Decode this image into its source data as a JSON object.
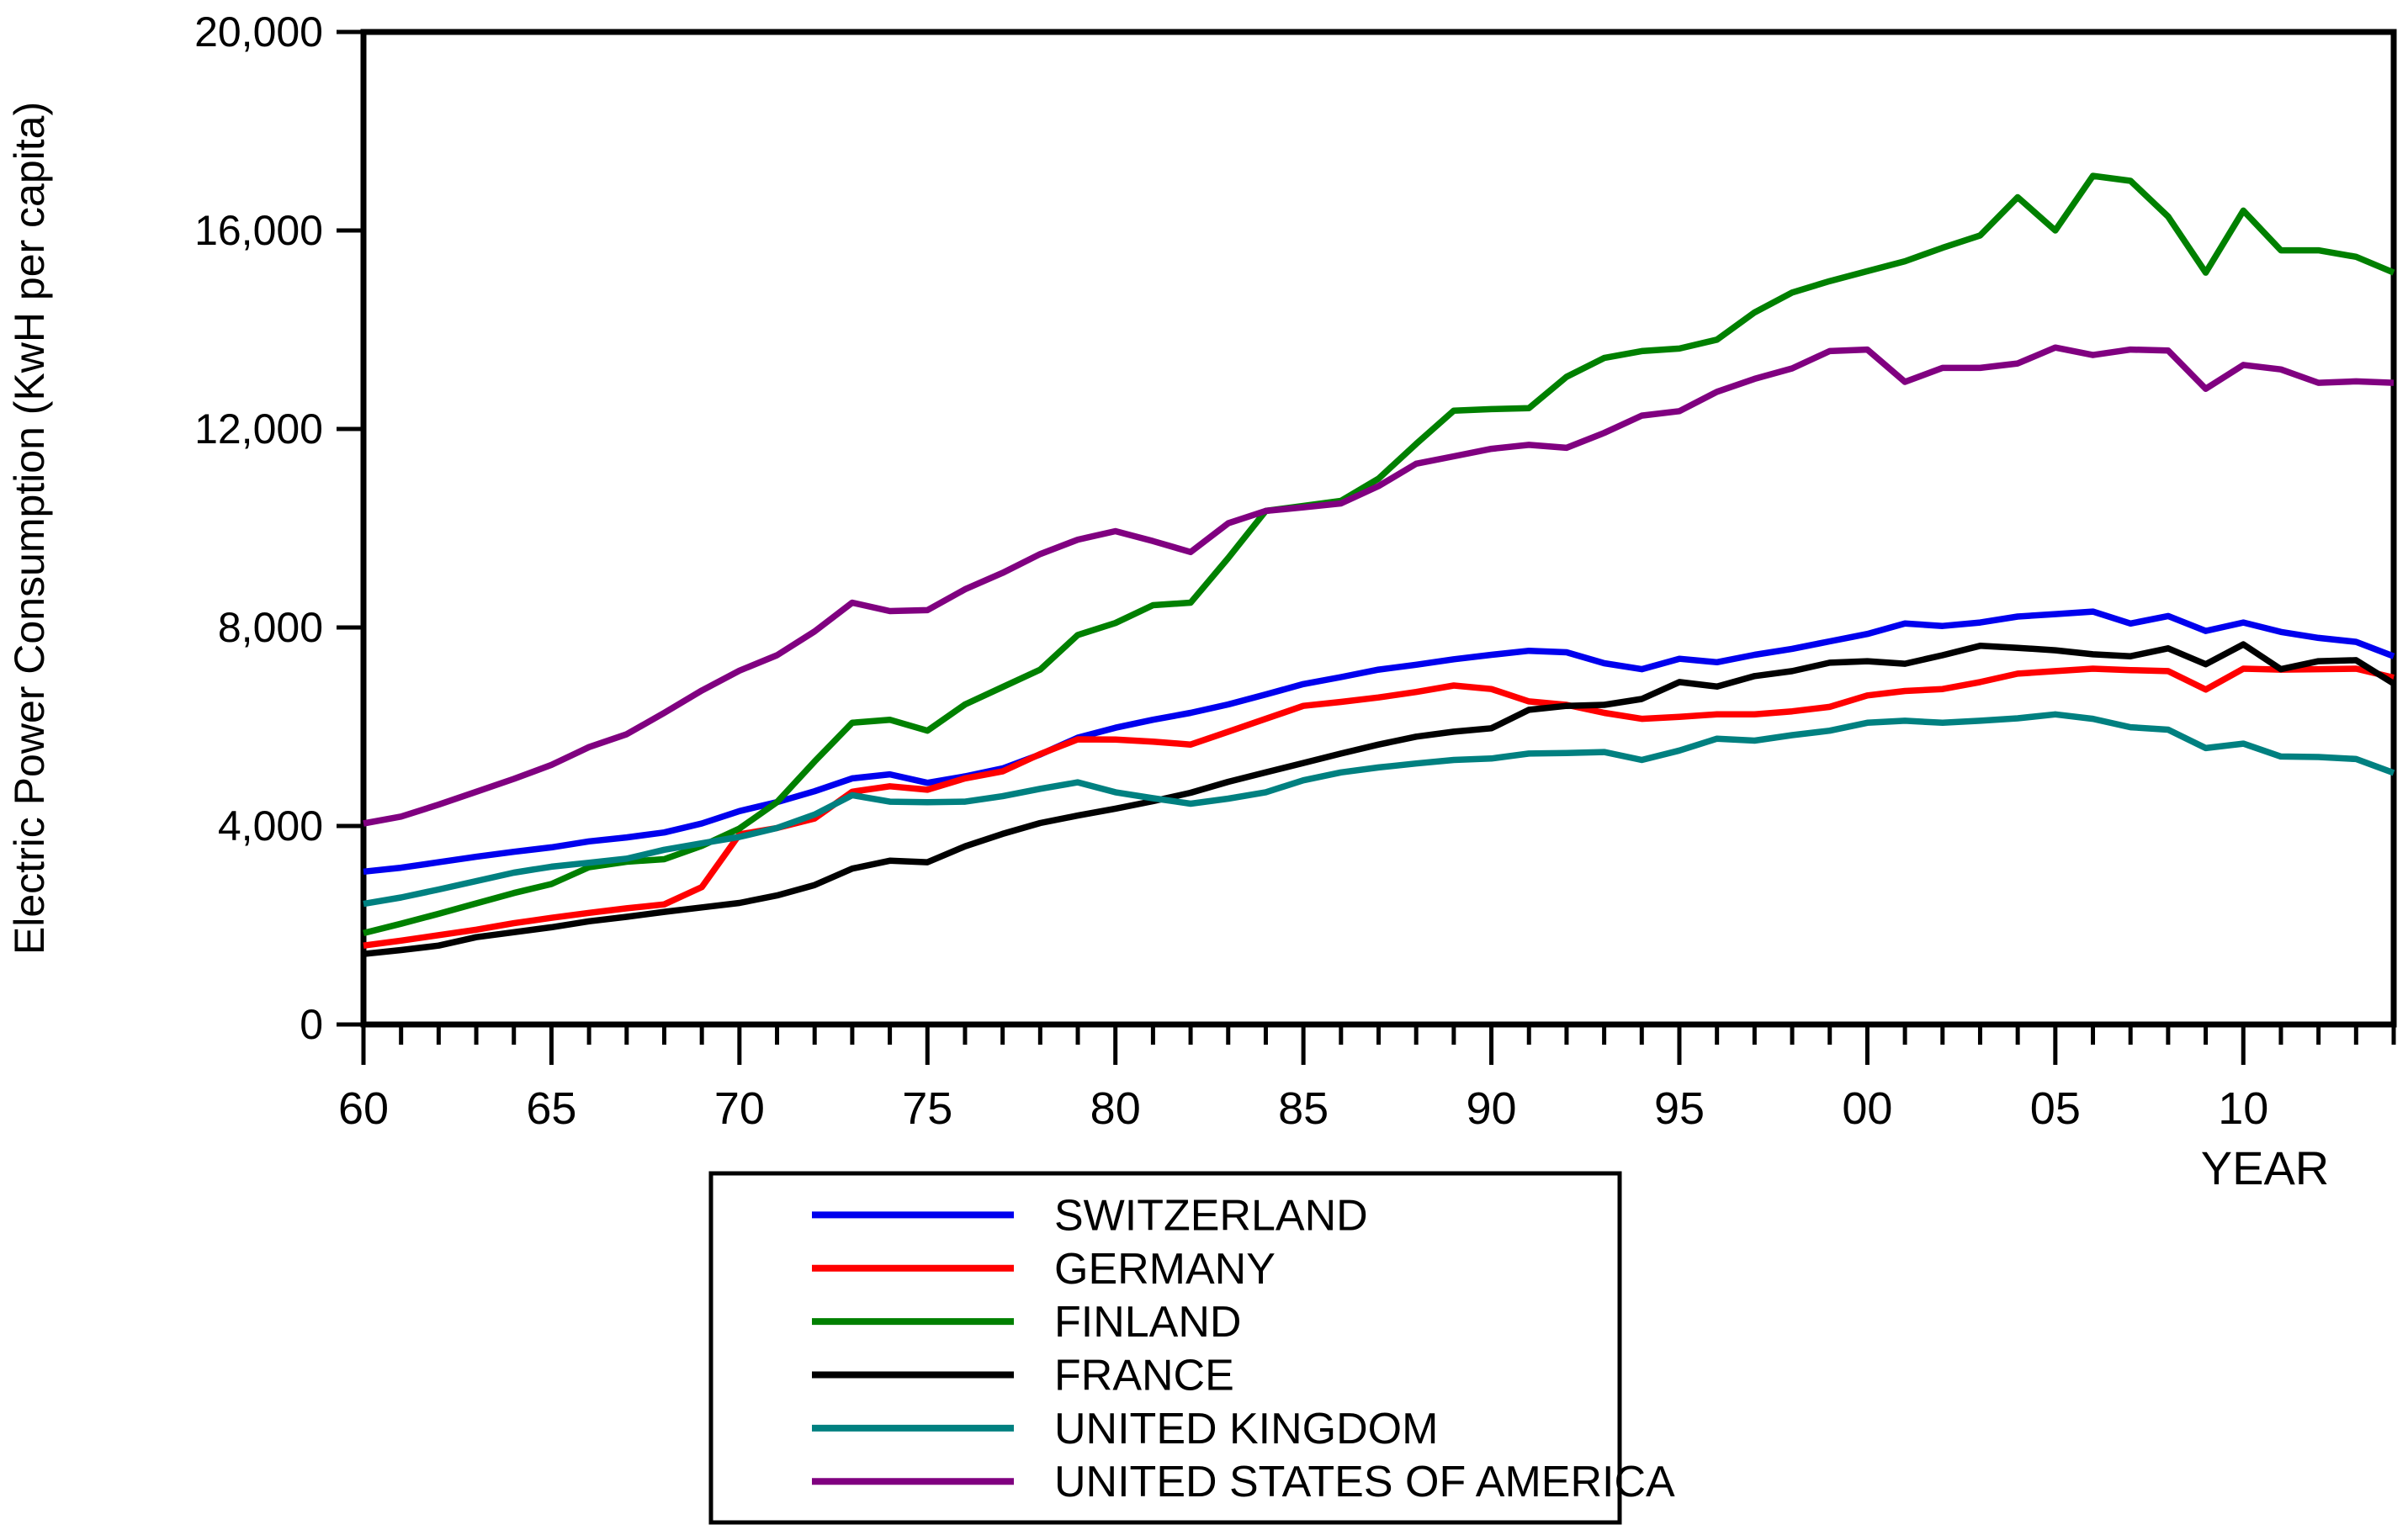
{
  "figure": {
    "ylabel": "Electric Power Consumption (KwH per capita)",
    "xlabel": "YEAR",
    "background": "#ffffff",
    "frame_color": "#000000"
  },
  "chart_data": {
    "type": "line",
    "x": [
      1960,
      1961,
      1962,
      1963,
      1964,
      1965,
      1966,
      1967,
      1968,
      1969,
      1970,
      1971,
      1972,
      1973,
      1974,
      1975,
      1976,
      1977,
      1978,
      1979,
      1980,
      1981,
      1982,
      1983,
      1984,
      1985,
      1986,
      1987,
      1988,
      1989,
      1990,
      1991,
      1992,
      1993,
      1994,
      1995,
      1996,
      1997,
      1998,
      1999,
      2000,
      2001,
      2002,
      2003,
      2004,
      2005,
      2006,
      2007,
      2008,
      2009,
      2010,
      2011,
      2012,
      2013,
      2014
    ],
    "x_major_ticks": [
      1960,
      1965,
      1970,
      1975,
      1980,
      1985,
      1990,
      1995,
      2000,
      2005,
      2010
    ],
    "x_tick_labels": [
      "60",
      "65",
      "70",
      "75",
      "80",
      "85",
      "90",
      "95",
      "00",
      "05",
      "10"
    ],
    "ylim": [
      0,
      20000
    ],
    "y_ticks": [
      0,
      4000,
      8000,
      12000,
      16000,
      20000
    ],
    "y_tick_labels": [
      "0",
      "4,000",
      "8,000",
      "12,000",
      "16,000",
      "20,000"
    ],
    "grid": false,
    "legend_position": "bottom-box",
    "series": [
      {
        "name": "SWITZERLAND",
        "color": "#0000ee",
        "values": [
          3080,
          3160,
          3270,
          3380,
          3480,
          3570,
          3690,
          3770,
          3870,
          4050,
          4300,
          4480,
          4700,
          4960,
          5040,
          4870,
          5000,
          5160,
          5440,
          5780,
          5980,
          6140,
          6280,
          6450,
          6650,
          6860,
          7000,
          7150,
          7250,
          7360,
          7450,
          7530,
          7500,
          7280,
          7160,
          7370,
          7300,
          7450,
          7570,
          7720,
          7870,
          8080,
          8030,
          8100,
          8220,
          8270,
          8320,
          8080,
          8230,
          7930,
          8100,
          7910,
          7790,
          7710,
          7420
        ]
      },
      {
        "name": "GERMANY",
        "color": "#ff0000",
        "values": [
          1590,
          1690,
          1800,
          1910,
          2040,
          2150,
          2250,
          2340,
          2420,
          2770,
          3830,
          3960,
          4150,
          4690,
          4800,
          4730,
          4960,
          5100,
          5450,
          5745,
          5740,
          5700,
          5640,
          5900,
          6160,
          6420,
          6500,
          6590,
          6700,
          6830,
          6760,
          6510,
          6440,
          6280,
          6160,
          6200,
          6250,
          6250,
          6310,
          6400,
          6630,
          6720,
          6760,
          6900,
          7070,
          7120,
          7170,
          7140,
          7120,
          6750,
          7170,
          7150,
          7160,
          7170,
          6990
        ]
      },
      {
        "name": "FINLAND",
        "color": "#008000",
        "values": [
          1840,
          2030,
          2230,
          2440,
          2650,
          2830,
          3170,
          3280,
          3330,
          3600,
          3950,
          4480,
          5300,
          6080,
          6140,
          5920,
          6450,
          6800,
          7150,
          7850,
          8090,
          8450,
          8500,
          9400,
          10350,
          10450,
          10550,
          11000,
          11700,
          12370,
          12400,
          12420,
          13050,
          13430,
          13570,
          13620,
          13800,
          14350,
          14750,
          14980,
          15180,
          15380,
          15650,
          15900,
          16670,
          16000,
          17100,
          17000,
          16280,
          15150,
          16400,
          15600,
          15600,
          15470,
          15150
        ]
      },
      {
        "name": "FRANCE",
        "color": "#000000",
        "values": [
          1420,
          1500,
          1590,
          1760,
          1860,
          1960,
          2080,
          2170,
          2270,
          2360,
          2450,
          2600,
          2810,
          3140,
          3300,
          3270,
          3590,
          3840,
          4060,
          4210,
          4350,
          4500,
          4670,
          4890,
          5080,
          5270,
          5460,
          5640,
          5800,
          5900,
          5970,
          6340,
          6420,
          6440,
          6560,
          6900,
          6810,
          7020,
          7120,
          7290,
          7320,
          7270,
          7440,
          7630,
          7590,
          7540,
          7460,
          7420,
          7580,
          7260,
          7660,
          7160,
          7320,
          7340,
          6870
        ]
      },
      {
        "name": "UNITED KINGDOM",
        "color": "#008080",
        "values": [
          2430,
          2560,
          2720,
          2890,
          3060,
          3180,
          3260,
          3340,
          3520,
          3650,
          3780,
          3960,
          4230,
          4620,
          4490,
          4480,
          4490,
          4600,
          4750,
          4880,
          4680,
          4560,
          4450,
          4550,
          4680,
          4920,
          5080,
          5180,
          5260,
          5330,
          5360,
          5460,
          5470,
          5490,
          5330,
          5520,
          5760,
          5720,
          5830,
          5920,
          6080,
          6120,
          6080,
          6120,
          6170,
          6250,
          6160,
          5990,
          5940,
          5570,
          5660,
          5400,
          5390,
          5350,
          5070
        ]
      },
      {
        "name": "UNITED STATES OF AMERICA",
        "color": "#800080",
        "values": [
          4050,
          4190,
          4430,
          4690,
          4950,
          5230,
          5590,
          5850,
          6280,
          6730,
          7130,
          7440,
          7920,
          8500,
          8330,
          8350,
          8770,
          9100,
          9480,
          9770,
          9940,
          9740,
          9520,
          10100,
          10350,
          10420,
          10500,
          10850,
          11300,
          11450,
          11600,
          11680,
          11620,
          11920,
          12270,
          12360,
          12750,
          13010,
          13220,
          13570,
          13600,
          12950,
          13230,
          13230,
          13320,
          13640,
          13490,
          13600,
          13580,
          12810,
          13290,
          13200,
          12930,
          12960,
          12930
        ]
      }
    ]
  }
}
